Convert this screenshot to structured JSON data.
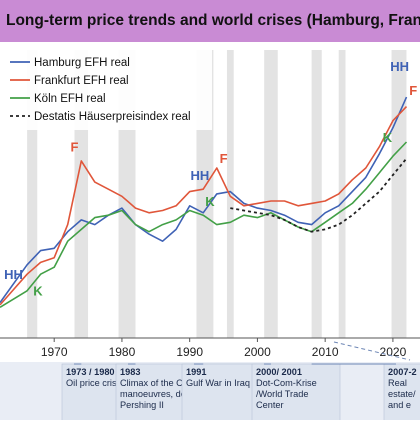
{
  "header": {
    "title": "Long-term price trends and world crises (Hamburg, Frankfurt"
  },
  "chart_data": {
    "type": "line",
    "title": "Long-term price trends and world crises (Hamburg, Frankfurt",
    "xlim": [
      1962,
      2024
    ],
    "ylim": [
      0,
      100
    ],
    "x_ticks": [
      1970,
      1980,
      1990,
      2000,
      2010,
      2020
    ],
    "x_tick_labels": [
      "1970",
      "1980",
      "1990",
      "2000",
      "2010",
      "2020"
    ],
    "grid": false,
    "legend": "top-left",
    "legend_entries": [
      "Hamburg EFH real",
      "Frankfurt EFH real",
      "Köln EFH real",
      "Destatis Häuserpreisindex real"
    ],
    "crisis_bands": [
      [
        1966,
        1967.5
      ],
      [
        1973,
        1975
      ],
      [
        1979.5,
        1982
      ],
      [
        1991,
        1993.5
      ],
      [
        1995.5,
        1996.5
      ],
      [
        2001,
        2003
      ],
      [
        2008,
        2009.5
      ],
      [
        2012,
        2013
      ],
      [
        2019.8,
        2022
      ]
    ],
    "series": [
      {
        "name": "Hamburg EFH real",
        "color": "#3f62b5",
        "dash": "solid",
        "x": [
          1962,
          1966,
          1968,
          1970,
          1972,
          1974,
          1976,
          1978,
          1980,
          1982,
          1984,
          1986,
          1988,
          1990,
          1992,
          1994,
          1996,
          1998,
          2000,
          2002,
          2004,
          2006,
          2008,
          2010,
          2012,
          2014,
          2016,
          2018,
          2020,
          2022
        ],
        "y": [
          15,
          31,
          37,
          38,
          45,
          50,
          48,
          52,
          55,
          48,
          44,
          41,
          46,
          56,
          53,
          61,
          62,
          57,
          55,
          54,
          52,
          49,
          48,
          53,
          56,
          62,
          68,
          78,
          89,
          102
        ]
      },
      {
        "name": "Frankfurt EFH real",
        "color": "#e0563a",
        "dash": "solid",
        "x": [
          1962,
          1966,
          1968,
          1970,
          1972,
          1974,
          1976,
          1978,
          1980,
          1982,
          1984,
          1986,
          1988,
          1990,
          1992,
          1994,
          1996,
          1998,
          2000,
          2002,
          2004,
          2006,
          2008,
          2010,
          2012,
          2014,
          2016,
          2018,
          2020,
          2022
        ],
        "y": [
          14,
          27,
          32,
          34,
          48,
          75,
          66,
          63,
          60,
          55,
          53,
          54,
          56,
          62,
          63,
          72,
          60,
          56,
          57,
          58,
          58,
          56,
          57,
          58,
          61,
          67,
          72,
          81,
          92,
          98
        ]
      },
      {
        "name": "Köln EFH real",
        "color": "#43a047",
        "dash": "solid",
        "x": [
          1962,
          1966,
          1968,
          1970,
          1972,
          1974,
          1976,
          1978,
          1980,
          1982,
          1984,
          1986,
          1988,
          1990,
          1992,
          1994,
          1996,
          1998,
          2000,
          2002,
          2004,
          2006,
          2008,
          2010,
          2012,
          2014,
          2016,
          2018,
          2020,
          2022
        ],
        "y": [
          13,
          20,
          27,
          30,
          41,
          46,
          51,
          52,
          54,
          48,
          45,
          48,
          50,
          54,
          52,
          48,
          49,
          52,
          51,
          53,
          50,
          47,
          45,
          49,
          53,
          57,
          63,
          70,
          77,
          83
        ]
      },
      {
        "name": "Destatis Häuserpreisindex real",
        "color": "#222222",
        "dash": "dashed",
        "x": [
          1996,
          1998,
          2000,
          2002,
          2004,
          2006,
          2008,
          2010,
          2012,
          2014,
          2016,
          2018,
          2020,
          2022
        ],
        "y": [
          55,
          54,
          53,
          52,
          50,
          47,
          45,
          46,
          48,
          52,
          57,
          62,
          69,
          76
        ]
      }
    ],
    "annotations": [
      {
        "text": "HH",
        "x": 1964,
        "y": 25,
        "color": "#3f62b5"
      },
      {
        "text": "K",
        "x": 1967.6,
        "y": 18,
        "color": "#43a047"
      },
      {
        "text": "F",
        "x": 1973,
        "y": 79,
        "color": "#e0563a"
      },
      {
        "text": "HH",
        "x": 1991.5,
        "y": 67,
        "color": "#3f62b5"
      },
      {
        "text": "F",
        "x": 1995,
        "y": 74,
        "color": "#e0563a"
      },
      {
        "text": "K",
        "x": 1993,
        "y": 56,
        "color": "#43a047"
      },
      {
        "text": "HH",
        "x": 2021,
        "y": 113,
        "color": "#3f62b5"
      },
      {
        "text": "F",
        "x": 2023,
        "y": 103,
        "color": "#e0563a"
      },
      {
        "text": "K",
        "x": 2019.2,
        "y": 83,
        "color": "#43a047"
      }
    ],
    "crisis_notes": [
      {
        "lines": [
          "1973 / 1980",
          "Oil price crises"
        ],
        "target": 1974
      },
      {
        "lines": [
          "1983",
          "Climax of the Cold War- NATO",
          "manoeuvres, deployment of",
          "Pershing II"
        ],
        "target": 1982
      },
      {
        "lines": [
          "1991",
          "Gulf War in Iraq"
        ],
        "target": 1992
      },
      {
        "lines": [
          "2000/ 2001",
          "Dot-Com-Krise",
          "/World Trade",
          "Center"
        ],
        "target": 2002
      },
      {
        "lines": [
          "2007-2",
          "Real",
          "estate/",
          "and e"
        ],
        "target": 2008
      }
    ]
  }
}
